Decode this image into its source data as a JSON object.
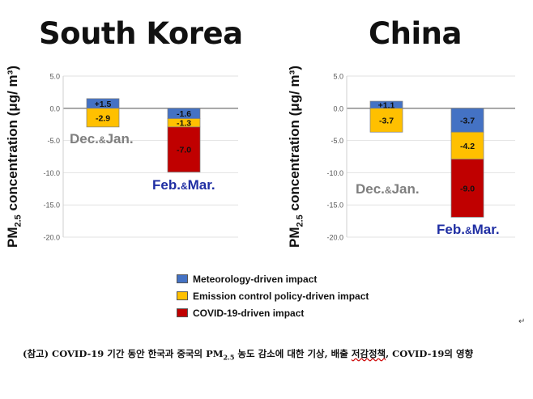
{
  "titles": [
    "South Korea",
    "China"
  ],
  "ylabel": {
    "main": "PM",
    "sub": "2.5",
    "rest": " concentration (μg/ m³)"
  },
  "legend": [
    {
      "label": "Meteorology-driven impact",
      "color": "#4472c4"
    },
    {
      "label": "Emission control policy-driven impact",
      "color": "#ffc000"
    },
    {
      "label": "COVID-19-driven impact",
      "color": "#c00000"
    }
  ],
  "caption": {
    "part1": "(참고) COVID-19 기간 동안 한국과 중국의 PM",
    "sub": "2.5",
    "part2": " 농도 감소에 대한 기상, 배출 ",
    "underlined": "저감정책",
    "part3": ", COVID-19의 영향"
  },
  "return_mark": "↵",
  "chart_data": [
    {
      "type": "bar",
      "stacked": true,
      "title": "South Korea",
      "ylabel": "PM2.5 concentration (μg/ m³)",
      "ylim": [
        -20,
        5
      ],
      "yticks": [
        "5.0",
        "0.0",
        "-5.0",
        "-10.0",
        "-15.0",
        "-20.0"
      ],
      "categories": [
        "Dec.&Jan.",
        "Feb.&Mar."
      ],
      "series": [
        {
          "name": "Meteorology-driven impact",
          "color": "#4472c4",
          "values": [
            1.5,
            -1.6
          ],
          "labels": [
            "+1.5",
            "-1.6"
          ]
        },
        {
          "name": "Emission control policy-driven impact",
          "color": "#ffc000",
          "values": [
            -2.9,
            -1.3
          ],
          "labels": [
            "-2.9",
            "-1.3"
          ]
        },
        {
          "name": "COVID-19-driven impact",
          "color": "#c00000",
          "values": [
            0,
            -7.0
          ],
          "labels": [
            "",
            "-7.0"
          ]
        }
      ]
    },
    {
      "type": "bar",
      "stacked": true,
      "title": "China",
      "ylabel": "PM2.5 concentration (μg/ m³)",
      "ylim": [
        -20,
        5
      ],
      "yticks": [
        "5.0",
        "0.0",
        "-5.0",
        "-10.0",
        "-15.0",
        "-20.0"
      ],
      "categories": [
        "Dec.&Jan.",
        "Feb.&Mar."
      ],
      "series": [
        {
          "name": "Meteorology-driven impact",
          "color": "#4472c4",
          "values": [
            1.1,
            -3.7
          ],
          "labels": [
            "+1.1",
            "-3.7"
          ]
        },
        {
          "name": "Emission control policy-driven impact",
          "color": "#ffc000",
          "values": [
            -3.7,
            -4.2
          ],
          "labels": [
            "-3.7",
            "-4.2"
          ]
        },
        {
          "name": "COVID-19-driven impact",
          "color": "#c00000",
          "values": [
            0,
            -9.0
          ],
          "labels": [
            "",
            "-9.0"
          ]
        }
      ]
    }
  ]
}
